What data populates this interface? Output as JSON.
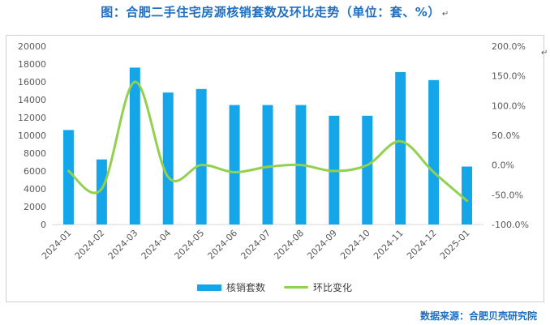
{
  "header": {
    "title": "图：合肥二手住宅房源核销套数及环比走势（单位：套、%）",
    "mark": "↵"
  },
  "footer": {
    "source": "数据来源：合肥贝壳研究院"
  },
  "colors": {
    "bar": "#14a6e9",
    "line": "#92d050",
    "axis_text": "#595959",
    "axis_line": "#d9d9d9",
    "title": "#1f6fc1"
  },
  "chart_data": {
    "type": "bar",
    "categories": [
      "2024-01",
      "2024-02",
      "2024-03",
      "2024-04",
      "2024-05",
      "2024-06",
      "2024-07",
      "2024-08",
      "2024-09",
      "2024-10",
      "2024-11",
      "2024-12",
      "2025-01"
    ],
    "series": [
      {
        "name": "核销套数",
        "type": "bar",
        "axis": "left",
        "values": [
          10600,
          7300,
          17600,
          14800,
          15200,
          13400,
          13400,
          13400,
          12200,
          12200,
          17100,
          16200,
          6500
        ]
      },
      {
        "name": "环比变化",
        "type": "line",
        "axis": "right",
        "values": [
          -10,
          -40,
          140,
          -20,
          0,
          -12,
          -3,
          0,
          -10,
          0,
          40,
          -12,
          -60
        ]
      }
    ],
    "left_axis": {
      "min": 0,
      "max": 20000,
      "step": 2000,
      "tick_labels": [
        "0",
        "2000",
        "4000",
        "6000",
        "8000",
        "10000",
        "12000",
        "14000",
        "16000",
        "18000",
        "20000"
      ]
    },
    "right_axis": {
      "min": -100,
      "max": 200,
      "step": 50,
      "tick_labels": [
        "-100.0%",
        "-50.0%",
        "0.0%",
        "50.0%",
        "100.0%",
        "150.0%",
        "200.0%"
      ]
    },
    "grid": false,
    "legend": {
      "placement": "bottom",
      "entries": [
        "核销套数",
        "环比变化"
      ]
    }
  }
}
